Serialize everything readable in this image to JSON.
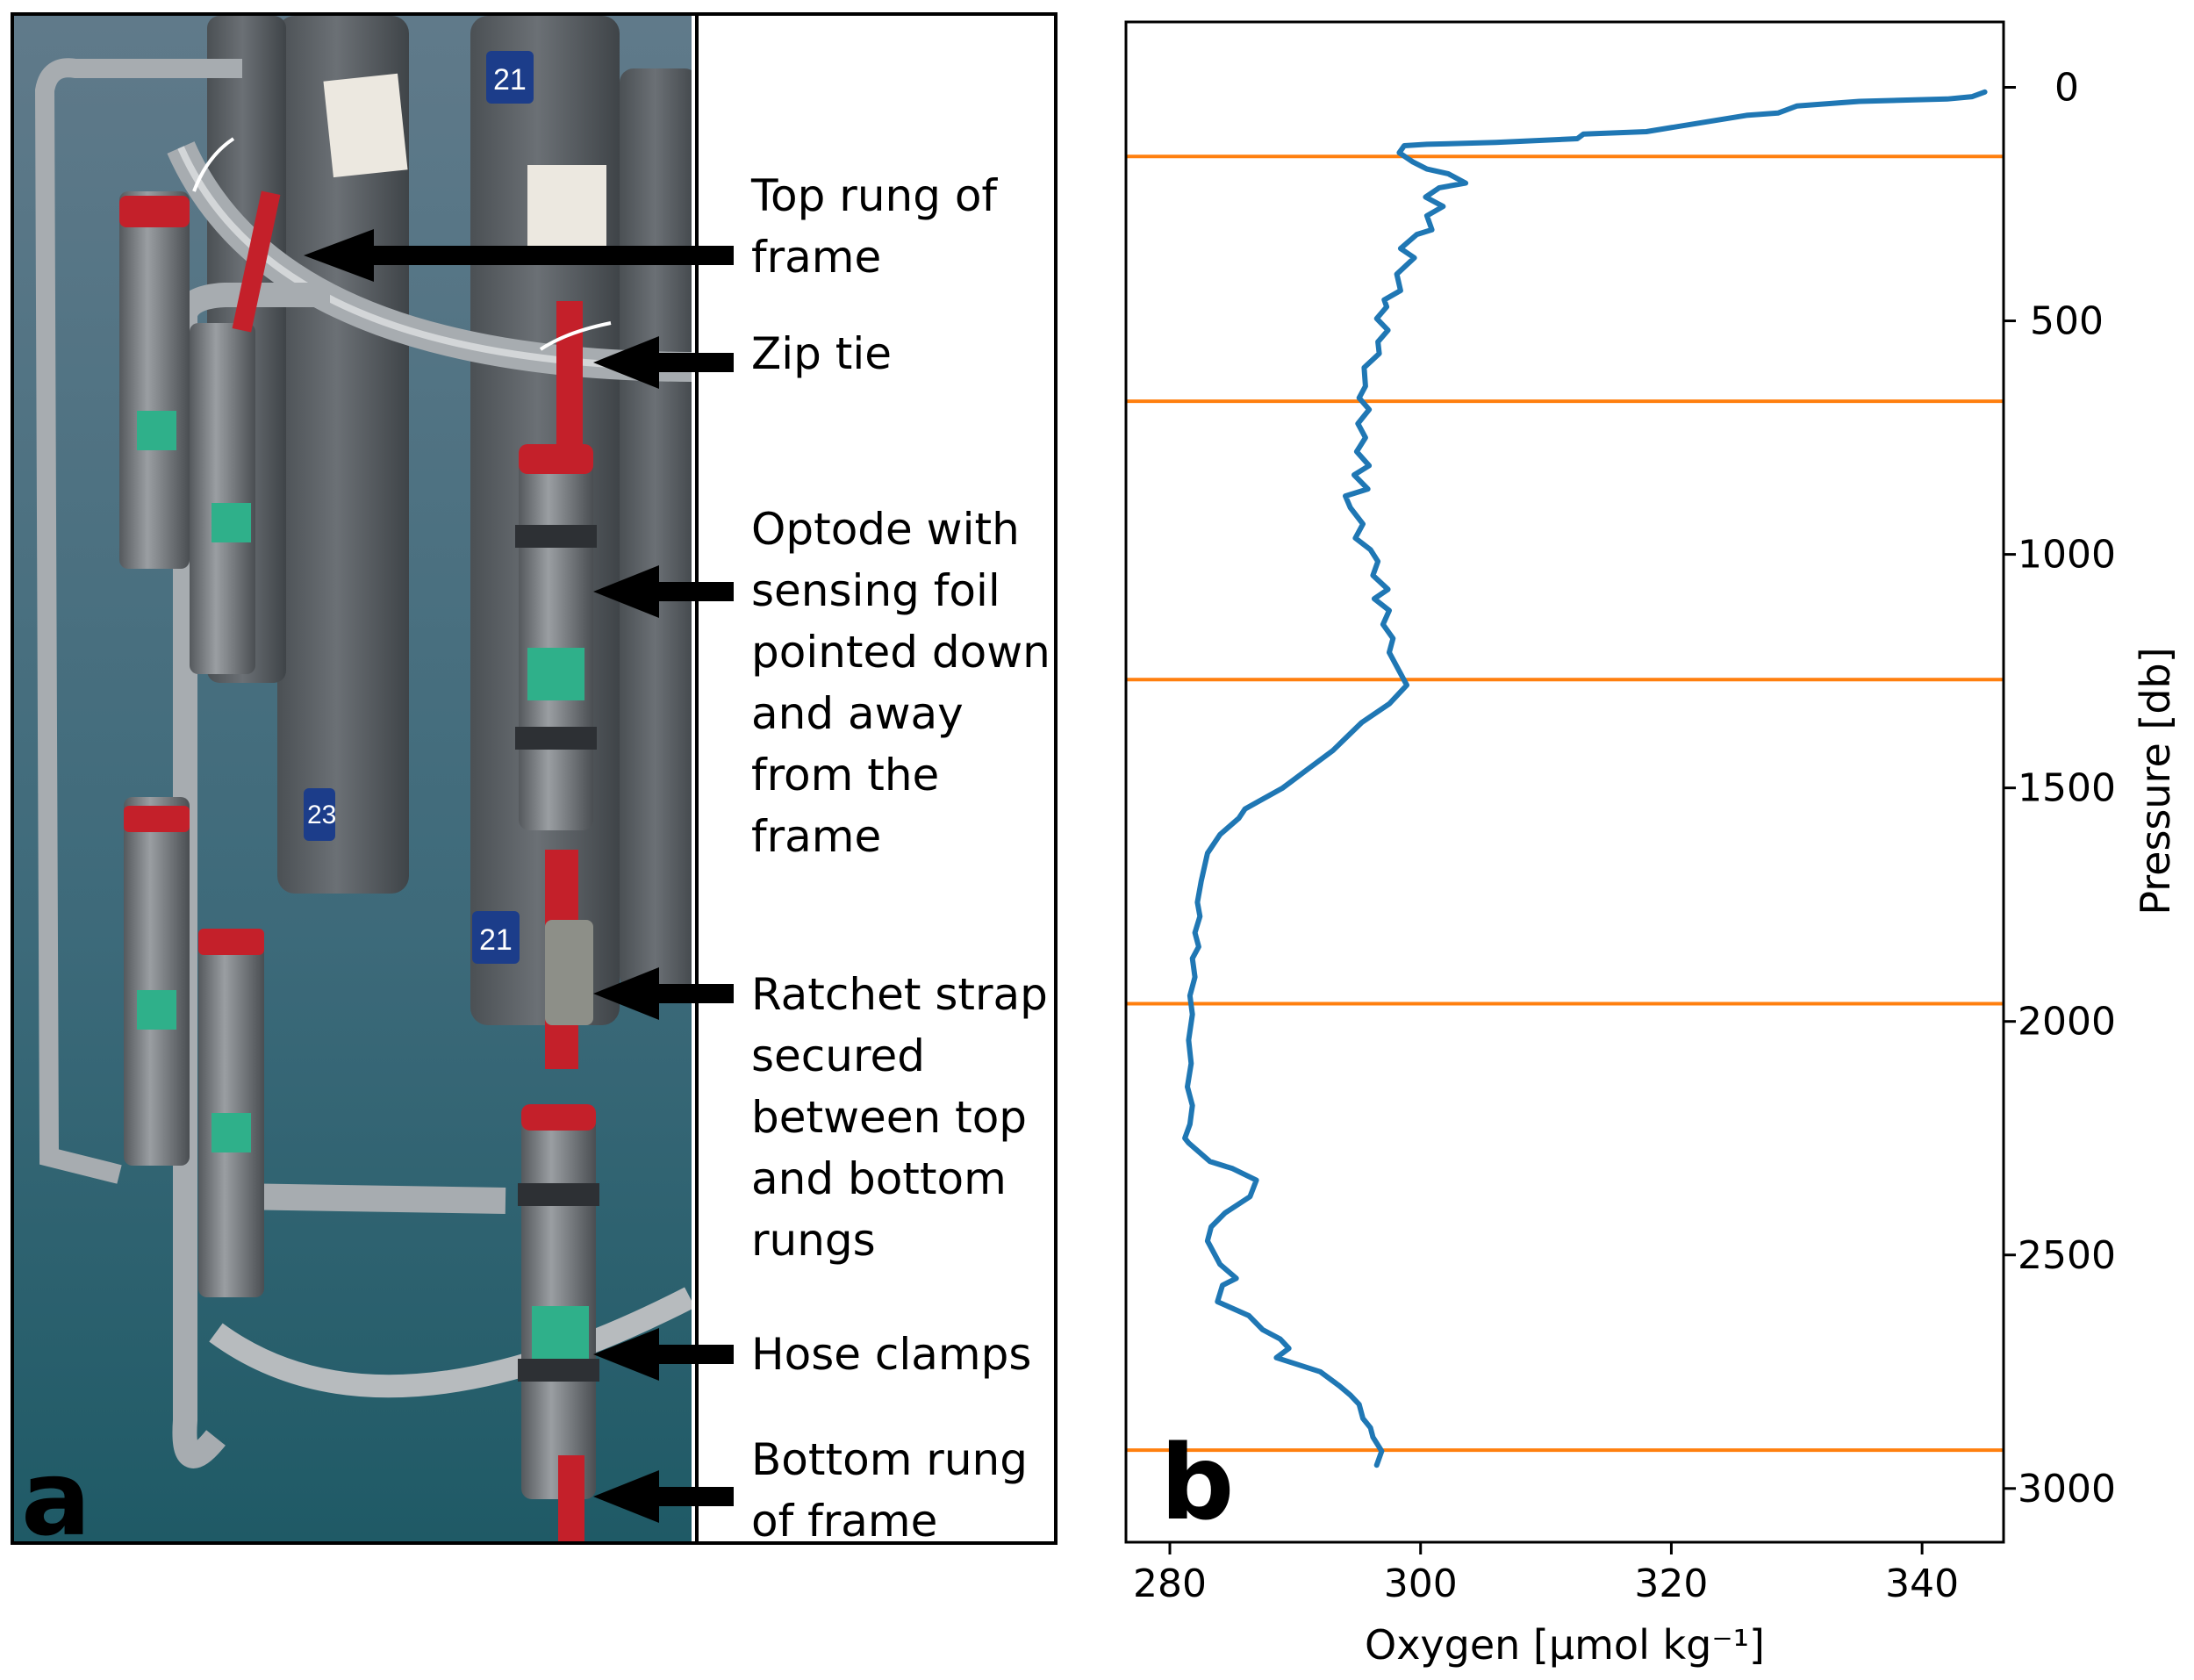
{
  "panel_a": {
    "letter": "a",
    "annotations": [
      {
        "id": "top-rung",
        "text": "Top rung of\nframe"
      },
      {
        "id": "zip-tie",
        "text": "Zip tie"
      },
      {
        "id": "optode",
        "text": "Optode with\nsensing foil\npointed down\nand away\nfrom the\nframe"
      },
      {
        "id": "ratchet",
        "text": "Ratchet strap\nsecured\nbetween top\nand bottom\nrungs"
      },
      {
        "id": "hose-clamps",
        "text": "Hose clamps"
      },
      {
        "id": "bottom-rung",
        "text": "Bottom rung\nof frame"
      }
    ],
    "bottle_numbers": [
      "21",
      "21",
      "23"
    ],
    "colors": {
      "water": "#3d6a7a",
      "frame": "#9aa0a4",
      "bottle": "#5d6266",
      "sensor": "#6f7478",
      "strap": "#c4202a",
      "tag": "#2fb08a"
    }
  },
  "panel_b": {
    "letter": "b"
  },
  "chart_data": {
    "type": "line",
    "title": "",
    "xlabel": "Oxygen [μmol kg⁻¹]",
    "ylabel": "Pressure [db]",
    "xlim": [
      276.5,
      346.5
    ],
    "ylim": [
      3115,
      -140
    ],
    "y_inverted": true,
    "y_axis_side": "right",
    "xticks": [
      280,
      300,
      320,
      340
    ],
    "yticks": [
      0,
      500,
      1000,
      1500,
      2000,
      2500,
      3000
    ],
    "grid": false,
    "series": [
      {
        "color": "#1f77b4",
        "x": [
          345.0,
          344.0,
          342.0,
          335.0,
          330.0,
          328.5,
          326.0,
          318.0,
          313.0,
          312.5,
          306.0,
          300.5,
          298.7,
          298.3,
          299.4,
          300.5,
          302.2,
          303.6,
          301.5,
          300.4,
          301.8,
          300.5,
          300.9,
          299.7,
          298.4,
          299.5,
          298.1,
          298.4,
          297.1,
          297.3,
          296.5,
          297.4,
          296.6,
          296.7,
          295.5,
          295.6,
          295.1,
          295.9,
          295.0,
          295.6,
          294.9,
          295.9,
          294.7,
          295.8,
          294.0,
          294.4,
          295.4,
          294.8,
          296.0,
          296.6,
          296.2,
          297.4,
          296.3,
          297.5,
          297.0,
          297.8,
          297.5,
          298.3,
          298.9,
          297.5,
          295.3,
          293.0,
          291.0,
          289.0,
          287.0,
          286.0,
          285.5,
          284.0,
          283.0,
          282.5,
          282.2,
          282.4,
          282.0,
          282.3,
          281.8,
          282.0,
          281.6,
          281.8,
          281.5,
          281.7,
          281.4,
          281.8,
          281.6,
          281.2,
          281.5,
          283.2,
          285.0,
          286.9,
          286.4,
          284.4,
          283.3,
          283.0,
          283.8,
          284.0,
          285.3,
          284.2,
          283.8,
          286.3,
          287.4,
          288.8,
          289.5,
          288.5,
          292.0,
          293.5,
          294.4,
          295.1,
          295.4,
          296.0,
          296.2,
          296.9,
          296.5
        ],
        "y": [
          10,
          20,
          25,
          30,
          40,
          55,
          60,
          95,
          100,
          110,
          118,
          122,
          125,
          140,
          160,
          175,
          185,
          205,
          215,
          235,
          255,
          275,
          305,
          315,
          345,
          365,
          400,
          435,
          455,
          470,
          495,
          520,
          545,
          570,
          600,
          640,
          665,
          690,
          720,
          750,
          780,
          810,
          830,
          860,
          875,
          900,
          935,
          965,
          990,
          1015,
          1045,
          1075,
          1095,
          1120,
          1150,
          1180,
          1210,
          1250,
          1280,
          1320,
          1360,
          1420,
          1460,
          1500,
          1530,
          1545,
          1565,
          1600,
          1640,
          1700,
          1745,
          1775,
          1810,
          1840,
          1865,
          1905,
          1945,
          1985,
          2040,
          2090,
          2140,
          2180,
          2220,
          2250,
          2260,
          2300,
          2315,
          2340,
          2375,
          2410,
          2440,
          2470,
          2510,
          2520,
          2550,
          2565,
          2600,
          2630,
          2660,
          2680,
          2700,
          2720,
          2750,
          2780,
          2800,
          2820,
          2850,
          2870,
          2890,
          2920,
          2950
        ]
      }
    ],
    "hlines": {
      "color": "#ff7f0e",
      "y": [
        148,
        672,
        1268,
        1962,
        2918
      ]
    }
  }
}
